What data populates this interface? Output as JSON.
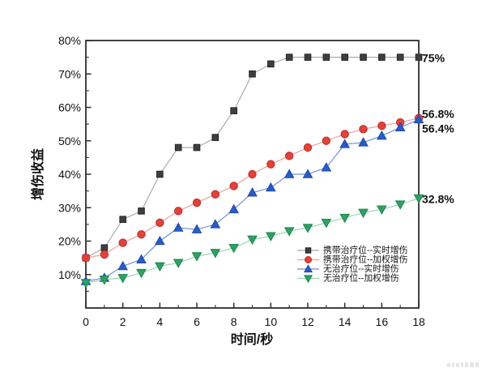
{
  "chart_data": {
    "type": "line",
    "title": "",
    "xlabel": "时间/秒",
    "ylabel": "增伤收益",
    "xlim": [
      0,
      18
    ],
    "ylim": [
      0,
      80
    ],
    "grid": false,
    "legend_position": "inside-lower-right",
    "frame_color": "#2d2d2d",
    "x": [
      0,
      1,
      2,
      3,
      4,
      5,
      6,
      7,
      8,
      9,
      10,
      11,
      12,
      13,
      14,
      15,
      16,
      17,
      18
    ],
    "x_ticks": {
      "values": [
        0,
        2,
        4,
        6,
        8,
        10,
        12,
        14,
        16,
        18
      ],
      "labels": [
        "0",
        "2",
        "4",
        "6",
        "8",
        "10",
        "12",
        "14",
        "16",
        "18"
      ],
      "minor": [
        1,
        3,
        5,
        7,
        9,
        11,
        13,
        15,
        17
      ]
    },
    "y_ticks": {
      "values": [
        10,
        20,
        30,
        40,
        50,
        60,
        70,
        80
      ],
      "labels": [
        "10%",
        "20%",
        "30%",
        "40%",
        "50%",
        "60%",
        "70%",
        "80%"
      ],
      "minor": [
        5,
        15,
        25,
        35,
        45,
        55,
        65,
        75
      ]
    },
    "series": [
      {
        "name": "携带治疗位--实时增伤",
        "marker": "square",
        "color": "#3f3f3f",
        "edge": "#242424",
        "line_color": "#a9a9a9",
        "values": [
          15,
          18,
          26.5,
          29,
          40,
          48,
          48,
          51,
          59,
          70,
          73,
          75,
          75,
          75,
          75,
          75,
          75,
          75,
          75
        ]
      },
      {
        "name": "携带治疗位--加权增伤",
        "marker": "circle",
        "color": "#e2413c",
        "edge": "#bd2f2b",
        "line_color": "#f09c98",
        "values": [
          15,
          16,
          19.5,
          22,
          25.5,
          29,
          31.5,
          34,
          36.5,
          40,
          43,
          45.5,
          48,
          50,
          52,
          53.5,
          54.5,
          55.5,
          56.8
        ]
      },
      {
        "name": "无治疗位--实时增伤",
        "marker": "triangle-up",
        "color": "#2a5bc7",
        "edge": "#1e4aa8",
        "line_color": "#6d8ed8",
        "values": [
          8,
          9,
          12.5,
          14.5,
          20,
          24,
          23.5,
          25,
          29.5,
          34.5,
          36,
          40,
          40,
          42,
          49,
          49.5,
          51.5,
          54,
          56.4
        ]
      },
      {
        "name": "无治疗位--加权增伤",
        "marker": "triangle-down",
        "color": "#2ea163",
        "edge": "#21854e",
        "line_color": "#97d5b1",
        "values": [
          7.5,
          8.5,
          9,
          10.5,
          12.5,
          13.5,
          15.5,
          16.5,
          18,
          20.5,
          21.5,
          23,
          24,
          25.5,
          27,
          28.5,
          29.5,
          31,
          32.8
        ]
      }
    ],
    "annotations": [
      {
        "text": "75%",
        "at": 75,
        "dy": 1
      },
      {
        "text": "56.8%",
        "at": 56.8,
        "dy": -5
      },
      {
        "text": "56.4%",
        "at": 56.4,
        "dy": 11
      },
      {
        "text": "32.8%",
        "at": 32.8,
        "dy": 1
      }
    ]
  }
}
